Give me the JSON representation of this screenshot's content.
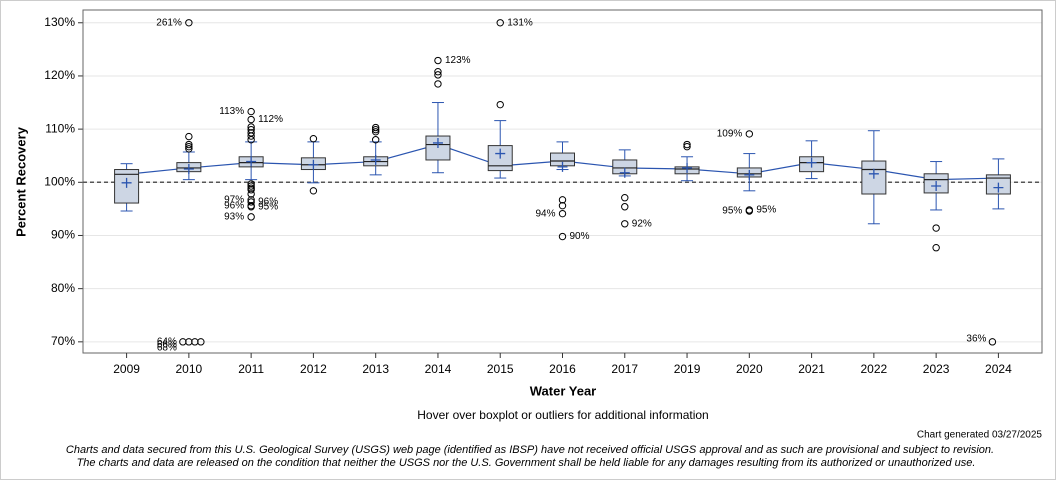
{
  "chart_data": {
    "type": "boxplot",
    "ylabel": "Percent Recovery",
    "xlabel": "Water Year",
    "note": "Hover over boxplot or outliers for additional information",
    "generated": "Chart generated 03/27/2025",
    "disclaimer": [
      "Charts and data secured from this U.S. Geological Survey (USGS) web page (identified as IBSP) have not received official USGS approval and as such are provisional and subject to revision.",
      "The charts and data are released on the condition that neither the USGS nor the U.S. Government shall be held liable for any damages resulting from its authorized or unauthorized use."
    ],
    "categories": [
      "2009",
      "2010",
      "2011",
      "2012",
      "2013",
      "2014",
      "2015",
      "2016",
      "2017",
      "2019",
      "2020",
      "2021",
      "2022",
      "2023",
      "2024"
    ],
    "boxes": [
      {
        "low": 94.6,
        "q1": 96.1,
        "median": 101.5,
        "q3": 102.4,
        "high": 103.5,
        "mean": 99.9,
        "outliers": []
      },
      {
        "low": 100.5,
        "q1": 102.0,
        "median": 102.7,
        "q3": 103.7,
        "high": 105.7,
        "mean": 102.5,
        "outliers": [
          108.6,
          107.1,
          106.7,
          106.3,
          {
            "value": 261,
            "label": "261%"
          },
          {
            "value": 64,
            "label": "64%"
          },
          {
            "value": 66,
            "label": "66%"
          },
          {
            "value": 68,
            "label": "68%"
          },
          69
        ]
      },
      {
        "low": 100.5,
        "q1": 102.9,
        "median": 103.7,
        "q3": 104.8,
        "high": 107.6,
        "mean": 103.9,
        "outliers": [
          {
            "value": 113.3,
            "label": "113%"
          },
          {
            "value": 111.8,
            "label": "112%"
          },
          110.4,
          109.9,
          109.3,
          108.7,
          108.0,
          99.7,
          99.3,
          98.9,
          98.6,
          97.8,
          {
            "value": 96.7,
            "label": "97%"
          },
          {
            "value": 96.3,
            "label": "96%"
          },
          {
            "value": 95.6,
            "label": "96%"
          },
          {
            "value": 95.4,
            "label": "95%"
          },
          {
            "value": 93.5,
            "label": "93%"
          }
        ]
      },
      {
        "low": 99.9,
        "q1": 102.4,
        "median": 103.3,
        "q3": 104.6,
        "high": 107.6,
        "mean": 103.3,
        "outliers": [
          108.2,
          98.4
        ]
      },
      {
        "low": 101.4,
        "q1": 103.1,
        "median": 103.9,
        "q3": 104.8,
        "high": 107.6,
        "mean": 104.2,
        "outliers": [
          110.3,
          109.9,
          109.5,
          108.0
        ]
      },
      {
        "low": 101.8,
        "q1": 104.2,
        "median": 107.1,
        "q3": 108.7,
        "high": 115.0,
        "mean": 107.4,
        "outliers": [
          {
            "value": 122.9,
            "label": "123%"
          },
          120.8,
          120.2,
          118.5
        ]
      },
      {
        "low": 100.8,
        "q1": 102.2,
        "median": 103.1,
        "q3": 106.9,
        "high": 111.6,
        "mean": 105.4,
        "outliers": [
          114.6,
          {
            "value": 131,
            "label": "131%"
          }
        ]
      },
      {
        "low": 102.4,
        "q1": 103.1,
        "median": 104.0,
        "q3": 105.5,
        "high": 107.6,
        "mean": 102.9,
        "outliers": [
          96.7,
          95.6,
          {
            "value": 94.1,
            "label": "94%"
          },
          {
            "value": 89.8,
            "label": "90%"
          }
        ]
      },
      {
        "low": 101.2,
        "q1": 101.6,
        "median": 102.7,
        "q3": 104.2,
        "high": 106.1,
        "mean": 101.8,
        "outliers": [
          97.1,
          95.4,
          {
            "value": 92.2,
            "label": "92%"
          }
        ]
      },
      {
        "low": 100.3,
        "q1": 101.6,
        "median": 102.5,
        "q3": 102.9,
        "high": 104.8,
        "mean": 102.7,
        "outliers": [
          107.1,
          106.7
        ]
      },
      {
        "low": 98.4,
        "q1": 101.0,
        "median": 101.6,
        "q3": 102.7,
        "high": 105.4,
        "mean": 101.4,
        "outliers": [
          {
            "value": 109.1,
            "label": "109%"
          },
          {
            "value": 94.8,
            "label": "95%"
          },
          {
            "value": 94.6,
            "label": "95%"
          }
        ]
      },
      {
        "low": 100.7,
        "q1": 102.0,
        "median": 103.7,
        "q3": 104.8,
        "high": 107.8,
        "mean": 103.7,
        "outliers": []
      },
      {
        "low": 92.2,
        "q1": 97.8,
        "median": 102.4,
        "q3": 104.0,
        "high": 109.7,
        "mean": 101.6,
        "outliers": []
      },
      {
        "low": 94.8,
        "q1": 98.0,
        "median": 100.5,
        "q3": 101.6,
        "high": 103.9,
        "mean": 99.3,
        "outliers": [
          91.4,
          87.7
        ]
      },
      {
        "low": 95.0,
        "q1": 97.8,
        "median": 100.8,
        "q3": 101.4,
        "high": 104.4,
        "mean": 99.0,
        "outliers": [
          {
            "value": 36,
            "label": "36%"
          }
        ]
      }
    ],
    "ylim": [
      67.9,
      132.4
    ],
    "yticks": [
      {
        "value": 70,
        "label": "70%"
      },
      {
        "value": 80,
        "label": "80%"
      },
      {
        "value": 90,
        "label": "90%"
      },
      {
        "value": 100,
        "label": "100%"
      },
      {
        "value": 110,
        "label": "110%"
      },
      {
        "value": 120,
        "label": "120%"
      },
      {
        "value": 130,
        "label": "130%"
      }
    ],
    "reference_line": 100,
    "grid": true,
    "box_color": "#cdd6e4",
    "line_color": "#2b55b0"
  }
}
